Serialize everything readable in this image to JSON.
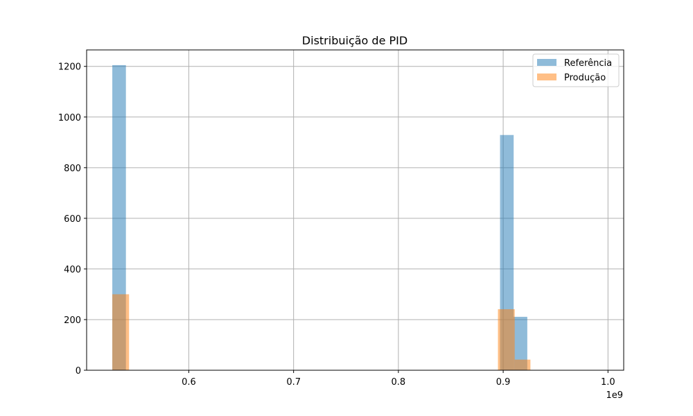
{
  "chart_data": {
    "type": "bar",
    "title": "Distribuição de PID",
    "xlabel": "",
    "ylabel": "",
    "x_offset_text": "1e9",
    "xlim": [
      0.5025,
      1.015
    ],
    "ylim": [
      0,
      1265
    ],
    "x_ticks": [
      {
        "value": 0.6,
        "label": "0.6"
      },
      {
        "value": 0.7,
        "label": "0.7"
      },
      {
        "value": 0.8,
        "label": "0.8"
      },
      {
        "value": 0.9,
        "label": "0.9"
      },
      {
        "value": 1.0,
        "label": "1.0"
      }
    ],
    "y_ticks": [
      {
        "value": 0,
        "label": "0"
      },
      {
        "value": 200,
        "label": "200"
      },
      {
        "value": 400,
        "label": "400"
      },
      {
        "value": 600,
        "label": "600"
      },
      {
        "value": 800,
        "label": "800"
      },
      {
        "value": 1000,
        "label": "1000"
      },
      {
        "value": 1200,
        "label": "1200"
      }
    ],
    "grid": true,
    "legend_position": "upper right",
    "series": [
      {
        "name": "Referência",
        "color": "#1f77b4",
        "opacity": 0.5,
        "bins": [
          {
            "x0": 0.527,
            "x1": 0.54,
            "count": 1205
          },
          {
            "x0": 0.897,
            "x1": 0.91,
            "count": 929
          },
          {
            "x0": 0.91,
            "x1": 0.923,
            "count": 211
          }
        ]
      },
      {
        "name": "Produção",
        "color": "#ff7f0e",
        "opacity": 0.5,
        "bins": [
          {
            "x0": 0.527,
            "x1": 0.543,
            "count": 300
          },
          {
            "x0": 0.895,
            "x1": 0.911,
            "count": 241
          },
          {
            "x0": 0.911,
            "x1": 0.926,
            "count": 42
          }
        ]
      }
    ]
  }
}
